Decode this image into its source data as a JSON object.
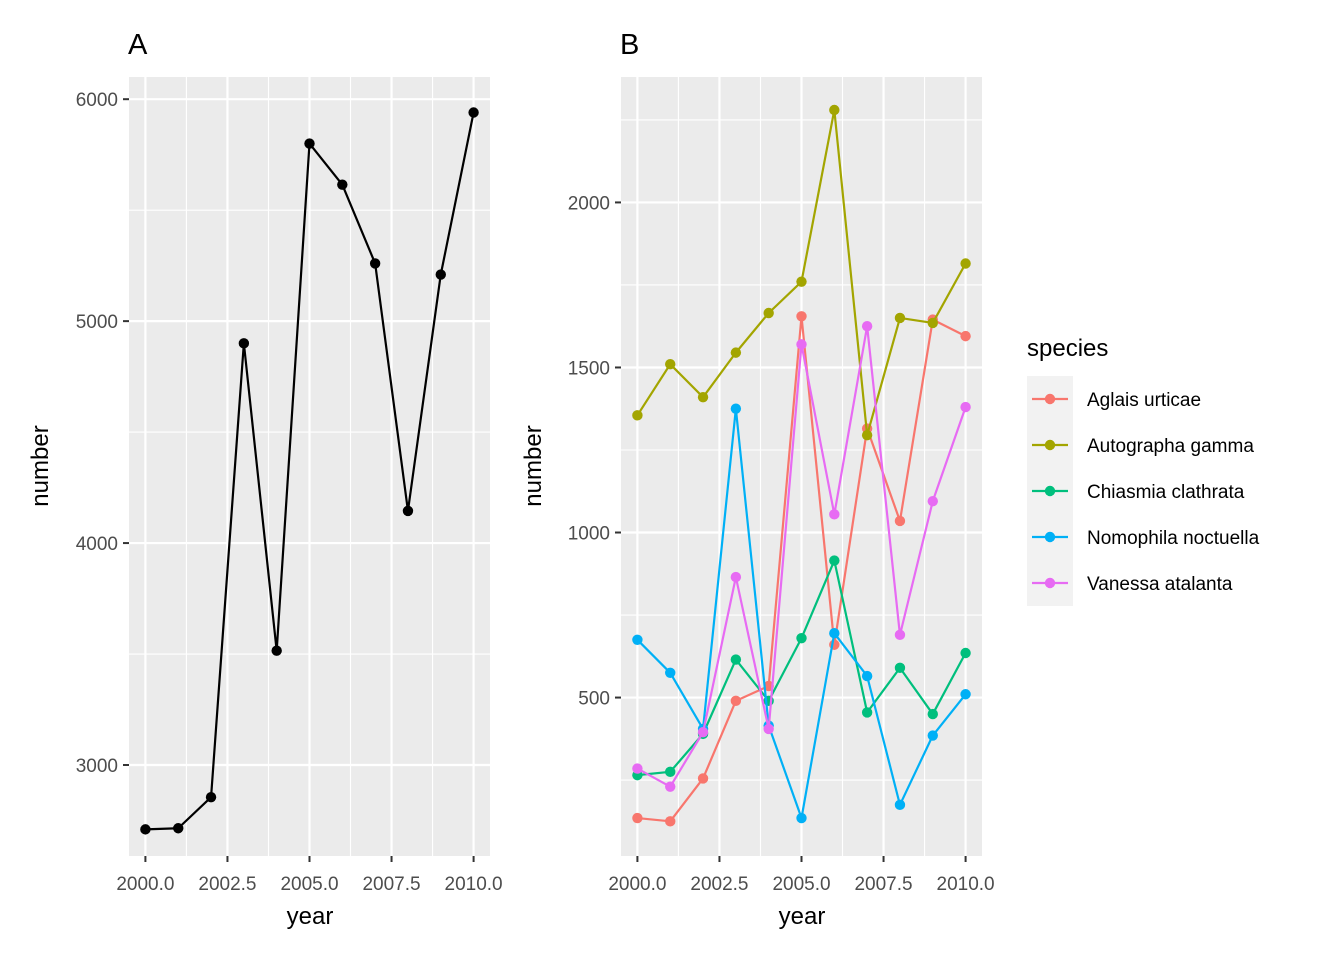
{
  "chart_data": [
    {
      "type": "line",
      "tag": "A",
      "xlabel": "year",
      "ylabel": "number",
      "xlim": [
        1999.5,
        2010.5
      ],
      "ylim": [
        2590,
        6100
      ],
      "xticks": [
        2000,
        2002.5,
        2005,
        2007.5,
        2010
      ],
      "xtick_labels": [
        "2000.0",
        "2002.5",
        "2005.0",
        "2007.5",
        "2010.0"
      ],
      "yticks": [
        3000,
        4000,
        5000,
        6000
      ],
      "ytick_labels": [
        "3000",
        "4000",
        "5000",
        "6000"
      ],
      "grid": true,
      "x": [
        2000,
        2001,
        2002,
        2003,
        2004,
        2005,
        2006,
        2007,
        2008,
        2009,
        2010
      ],
      "series": [
        {
          "color": "#000000",
          "values": [
            2710,
            2715,
            2855,
            4900,
            3515,
            5800,
            5615,
            5260,
            4145,
            5210,
            5940
          ]
        }
      ]
    },
    {
      "type": "line",
      "tag": "B",
      "xlabel": "year",
      "ylabel": "number",
      "xlim": [
        1999.5,
        2010.5
      ],
      "ylim": [
        20,
        2380
      ],
      "xticks": [
        2000,
        2002.5,
        2005,
        2007.5,
        2010
      ],
      "xtick_labels": [
        "2000.0",
        "2002.5",
        "2005.0",
        "2007.5",
        "2010.0"
      ],
      "yticks": [
        500,
        1000,
        1500,
        2000
      ],
      "ytick_labels": [
        "500",
        "1000",
        "1500",
        "2000"
      ],
      "grid": true,
      "legend": {
        "title": "species",
        "position": "right"
      },
      "x": [
        2000,
        2001,
        2002,
        2003,
        2004,
        2005,
        2006,
        2007,
        2008,
        2009,
        2010
      ],
      "series": [
        {
          "name": "Aglais urticae",
          "color": "#F8766D",
          "values": [
            135,
            125,
            255,
            490,
            535,
            1655,
            660,
            1315,
            1035,
            1645,
            1595
          ]
        },
        {
          "name": "Autographa gamma",
          "color": "#A3A500",
          "values": [
            1355,
            1510,
            1410,
            1545,
            1665,
            1760,
            2280,
            1295,
            1650,
            1635,
            1815
          ]
        },
        {
          "name": "Chiasmia clathrata",
          "color": "#00BF7D",
          "values": [
            265,
            275,
            390,
            615,
            490,
            680,
            915,
            455,
            590,
            450,
            635
          ]
        },
        {
          "name": "Nomophila noctuella",
          "color": "#00B0F6",
          "values": [
            675,
            575,
            405,
            1375,
            415,
            135,
            695,
            565,
            175,
            385,
            510
          ]
        },
        {
          "name": "Vanessa atalanta",
          "color": "#E76BF3",
          "values": [
            285,
            230,
            395,
            865,
            405,
            1570,
            1055,
            1625,
            690,
            1095,
            1380
          ]
        }
      ]
    }
  ]
}
